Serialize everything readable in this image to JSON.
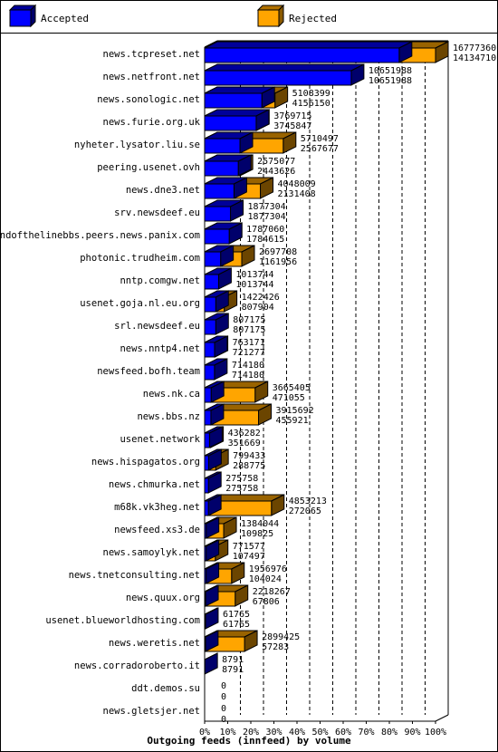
{
  "legend": {
    "accepted_label": "Accepted",
    "rejected_label": "Rejected",
    "accepted_color": "#0000ff",
    "rejected_color": "#ffa500"
  },
  "chart_data": {
    "type": "bar",
    "orientation": "horizontal",
    "stacking": "overlay",
    "xlabel": "Outgoing feeds (innfeed) by volume",
    "ylabel": "",
    "xlim": [
      0,
      100
    ],
    "xticks": [
      "0%",
      "10%",
      "20%",
      "30%",
      "40%",
      "50%",
      "60%",
      "70%",
      "80%",
      "90%",
      "100%"
    ],
    "grid": true,
    "legend_position": "top",
    "series": [
      {
        "name": "Accepted",
        "color": "#0000ff"
      },
      {
        "name": "Rejected",
        "color": "#ffa500"
      }
    ],
    "categories": [
      "news.tcpreset.net",
      "news.netfront.net",
      "news.sonologic.net",
      "news.furie.org.uk",
      "nyheter.lysator.liu.se",
      "peering.usenet.ovh",
      "news.dne3.net",
      "srv.newsdeef.eu",
      "endofthelinebbs.peers.news.panix.com",
      "photonic.trudheim.com",
      "nntp.comgw.net",
      "usenet.goja.nl.eu.org",
      "srl.newsdeef.eu",
      "news.nntp4.net",
      "newsfeed.bofh.team",
      "news.nk.ca",
      "news.bbs.nz",
      "usenet.network",
      "news.hispagatos.org",
      "news.chmurka.net",
      "m68k.vk3heg.net",
      "newsfeed.xs3.de",
      "news.samoylyk.net",
      "news.tnetconsulting.net",
      "news.quux.org",
      "usenet.blueworldhosting.com",
      "news.weretis.net",
      "news.corradoroberto.it",
      "ddt.demos.su",
      "news.gletsjer.net"
    ],
    "offered": [
      16777360,
      10651988,
      5108399,
      3769715,
      5710497,
      2575077,
      4048009,
      1877304,
      1787060,
      2697708,
      1013744,
      1422426,
      807175,
      763171,
      714180,
      3665405,
      3915692,
      436282,
      799433,
      275758,
      4853213,
      1384044,
      771577,
      1956976,
      2218267,
      61765,
      2899425,
      8791,
      0,
      0
    ],
    "accepted": [
      14134710,
      10651988,
      4156150,
      3745847,
      2567677,
      2443626,
      2131408,
      1877304,
      1784615,
      1161956,
      1013744,
      807904,
      807175,
      721277,
      714180,
      471055,
      455921,
      351669,
      288775,
      275758,
      272065,
      109825,
      107497,
      104024,
      67806,
      61765,
      57283,
      8791,
      0,
      0
    ]
  }
}
